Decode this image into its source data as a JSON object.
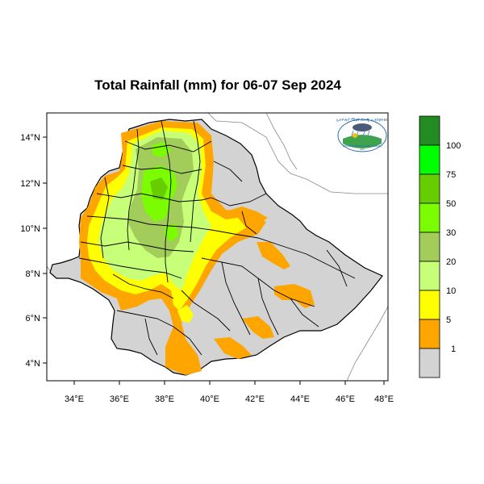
{
  "title": "Total Rainfall (mm) for 06-07 Sep 2024",
  "axes": {
    "x_ticks": [
      "34°E",
      "36°E",
      "38°E",
      "40°E",
      "42°E",
      "44°E",
      "46°E",
      "48°E"
    ],
    "y_ticks": [
      "14°N",
      "12°N",
      "10°N",
      "8°N",
      "6°N",
      "4°N"
    ]
  },
  "legend": {
    "labels": [
      "1",
      "5",
      "10",
      "20",
      "30",
      "50",
      "75",
      "100"
    ],
    "colors": [
      "#d3d3d3",
      "#ffa500",
      "#ffff00",
      "#c8ff78",
      "#a2cd5a",
      "#7cfc00",
      "#66cd00",
      "#00ff00",
      "#228b22"
    ]
  },
  "logo": {
    "icon": "ethiopian-meteorology-institute-logo",
    "text": "Ethiopian Meteorology Institute"
  },
  "colors": {
    "land": "#d3d3d3",
    "orange": "#ffa500",
    "yellow": "#ffff00",
    "lightgreen": "#c8ff78",
    "olivegreen": "#a2cd5a",
    "green": "#7cfc00",
    "boundary": "#000000",
    "neighbor_border": "#888888"
  }
}
